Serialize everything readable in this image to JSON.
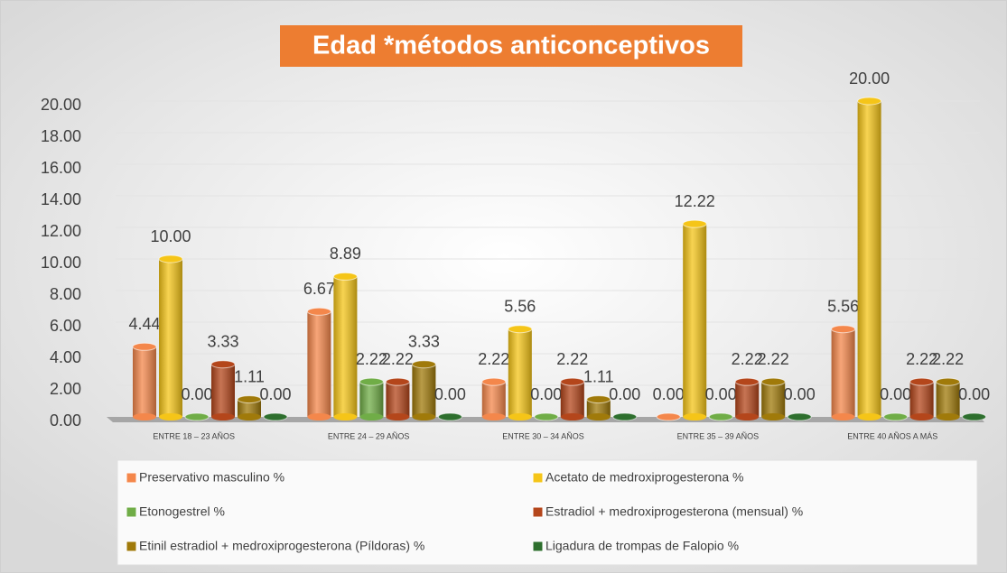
{
  "chart_data": {
    "type": "bar3d",
    "title": "Edad *métodos anticonceptivos",
    "categories": [
      "ENTRE 18 – 23 AÑOS",
      "ENTRE 24 – 29 AÑOS",
      "ENTRE 30 – 34 AÑOS",
      "ENTRE 35 – 39 AÑOS",
      "ENTRE 40 AÑOS A MÁS"
    ],
    "series": [
      {
        "name": "Preservativo masculino %",
        "color": "#f4874b",
        "values": [
          4.44,
          6.67,
          2.22,
          0,
          5.56
        ],
        "value_labels": [
          "4.44",
          "6.67",
          "2.22",
          "0.00",
          "5.56"
        ]
      },
      {
        "name": "Acetato de medroxiprogesterona %",
        "color": "#f5c518",
        "values": [
          10,
          8.89,
          5.56,
          12.22,
          20
        ],
        "value_labels": [
          "10.00",
          "8.89",
          "5.56",
          "12.22",
          "20.00"
        ]
      },
      {
        "name": "Etonogestrel %",
        "color": "#70ad47",
        "values": [
          0,
          2.22,
          0,
          0,
          0
        ],
        "value_labels": [
          "0.00",
          "2.22",
          "0.00",
          "0.00",
          "0.00"
        ]
      },
      {
        "name": "Estradiol + medroxiprogesterona (mensual) %",
        "color": "#b4461b",
        "values": [
          3.33,
          2.22,
          2.22,
          2.22,
          2.22
        ],
        "value_labels": [
          "3.33",
          "2.22",
          "2.22",
          "2.22",
          "2.22"
        ]
      },
      {
        "name": "Etinil estradiol + medroxiprogesterona (Píldoras) %",
        "color": "#a07a0a",
        "values": [
          1.11,
          3.33,
          1.11,
          2.22,
          2.22
        ],
        "value_labels": [
          "1.11",
          "3.33",
          "1.11",
          "2.22",
          "2.22"
        ]
      },
      {
        "name": "Ligadura de trompas de Falopio %",
        "color": "#2e6f2e",
        "values": [
          0,
          0,
          0,
          0,
          0
        ],
        "value_labels": [
          "0.00",
          "0.00",
          "0.00",
          "0.00",
          "0.00"
        ]
      }
    ],
    "ylim": [
      0,
      20
    ],
    "yticks": [
      {
        "value": 0,
        "label": "0.00"
      },
      {
        "value": 2,
        "label": "2.00"
      },
      {
        "value": 4,
        "label": "4.00"
      },
      {
        "value": 6,
        "label": "6.00"
      },
      {
        "value": 8,
        "label": "8.00"
      },
      {
        "value": 10,
        "label": "10.00"
      },
      {
        "value": 12,
        "label": "12.00"
      },
      {
        "value": 14,
        "label": "14.00"
      },
      {
        "value": 16,
        "label": "16.00"
      },
      {
        "value": 18,
        "label": "18.00"
      },
      {
        "value": 20,
        "label": "20.00"
      }
    ],
    "grid": true,
    "legend": "bottom"
  }
}
